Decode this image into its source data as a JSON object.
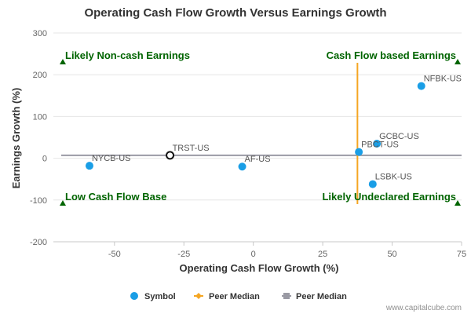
{
  "chart_data": {
    "type": "scatter",
    "title": "Operating Cash Flow Growth Versus Earnings Growth",
    "xlabel": "Operating Cash Flow Growth (%)",
    "ylabel": "Earnings Growth (%)",
    "xlim": [
      -72,
      75
    ],
    "ylim": [
      -200,
      300
    ],
    "x_ticks": [
      -50,
      -25,
      0,
      25,
      50,
      75
    ],
    "y_ticks": [
      -200,
      -100,
      0,
      100,
      200,
      300
    ],
    "points": [
      {
        "label": "NFBK-US",
        "x": 60.5,
        "y": 173
      },
      {
        "label": "GCBC-US",
        "x": 44.5,
        "y": 35
      },
      {
        "label": "PBCT-US",
        "x": 38,
        "y": 15
      },
      {
        "label": "LSBK-US",
        "x": 43,
        "y": -62
      },
      {
        "label": "AF-US",
        "x": -4,
        "y": -20
      },
      {
        "label": "NYCB-US",
        "x": -59,
        "y": -18
      },
      {
        "label": "TRST-US",
        "x": -30,
        "y": 7,
        "highlight": true
      }
    ],
    "peer_median_x": 37.5,
    "peer_median_y": 7,
    "quadrants": {
      "top_left": "Likely Non-cash Earnings",
      "top_right": "Cash Flow based Earnings",
      "bottom_left": "Low Cash Flow Base",
      "bottom_right": "Likely Undeclared Earnings"
    },
    "legend": {
      "position": "bottom",
      "items": [
        {
          "label": "Symbol",
          "marker": "circle",
          "color": "#1a9ee6"
        },
        {
          "label": "Peer Median",
          "marker": "diamond",
          "color": "#f5a623"
        },
        {
          "label": "Peer Median",
          "marker": "square",
          "color": "#9a9aa4"
        }
      ]
    },
    "colors": {
      "point": "#1a9ee6",
      "highlight_stroke": "#111111",
      "median_x_line": "#f5a623",
      "median_y_line": "#9a9aa4",
      "quadrant": "#006400"
    }
  },
  "credit": "www.capitalcube.com"
}
